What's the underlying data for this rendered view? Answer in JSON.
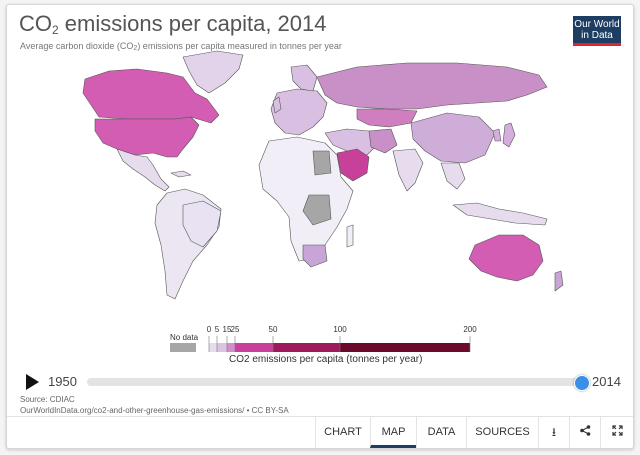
{
  "title": {
    "main": "CO",
    "sub": "2",
    "rest": " emissions per capita, 2014"
  },
  "subtitle": {
    "pre": "Average carbon dioxide (CO",
    "sub": "2",
    "post": ") emissions per capita measured in tonnes per year"
  },
  "logo": {
    "line1": "Our World",
    "line2": "in Data"
  },
  "legend": {
    "nodata_label": "No data",
    "ticks": [
      "0",
      "5",
      "15",
      "25",
      "50",
      "100",
      "200"
    ],
    "caption": "CO2 emissions per capita (tonnes per year)",
    "colors": {
      "nodata": "#a6a6a6",
      "bins": [
        "#f2eef7",
        "#e6dcee",
        "#dbc3e2",
        "#d48ccd",
        "#c9409a",
        "#9f1a5c",
        "#6b0a2d"
      ]
    }
  },
  "timeline": {
    "start": "1950",
    "end": "2014",
    "value": 2014
  },
  "source": {
    "line1": "Source: CDIAC",
    "line2": "OurWorldInData.org/co2-and-other-greenhouse-gas-emissions/ • CC BY-SA"
  },
  "tabs": [
    {
      "label": "CHART"
    },
    {
      "label": "MAP",
      "active": true
    },
    {
      "label": "DATA"
    },
    {
      "label": "SOURCES"
    }
  ],
  "icons": [
    "download-icon",
    "share-icon",
    "expand-icon"
  ],
  "regions": [
    {
      "name": "Canada",
      "color": "#d25db3"
    },
    {
      "name": "United States",
      "color": "#d25db3"
    },
    {
      "name": "Greenland",
      "color": "#e3d3ea"
    },
    {
      "name": "Mexico",
      "color": "#e6dcee"
    },
    {
      "name": "South America",
      "color": "#ece6f3"
    },
    {
      "name": "Europe",
      "color": "#d9bfe1"
    },
    {
      "name": "Russia",
      "color": "#c98fc7"
    },
    {
      "name": "Kazakhstan",
      "color": "#cf7fc0"
    },
    {
      "name": "China",
      "color": "#ceaed8"
    },
    {
      "name": "India",
      "color": "#e6dcee"
    },
    {
      "name": "Saudi Arabia",
      "color": "#c9409a"
    },
    {
      "name": "Africa",
      "color": "#f2eef7"
    },
    {
      "name": "South Africa",
      "color": "#c9a4d6"
    },
    {
      "name": "Australia",
      "color": "#d25db3"
    },
    {
      "name": "Southeast Asia",
      "color": "#e6dcee"
    },
    {
      "name": "Japan",
      "color": "#d6aedd"
    }
  ]
}
